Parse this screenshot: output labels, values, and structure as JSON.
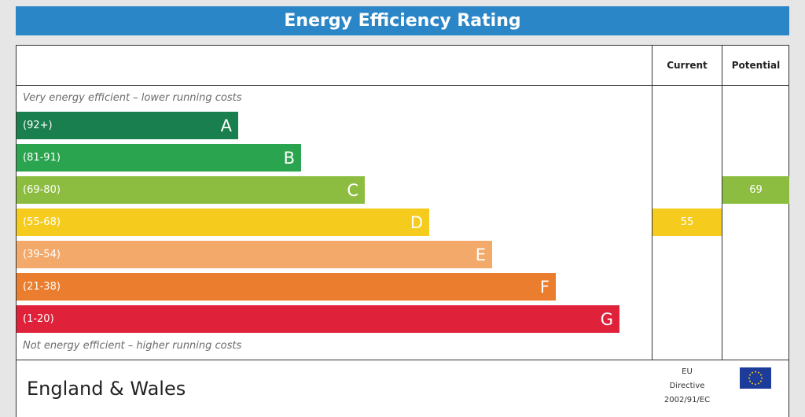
{
  "header": {
    "title": "Energy Efficiency Rating"
  },
  "columns": {
    "current": "Current",
    "potential": "Potential"
  },
  "notes": {
    "top": "Very energy efficient – lower running costs",
    "bottom": "Not energy efficient – higher running costs"
  },
  "bands": [
    {
      "range": "(92+)",
      "letter": "A",
      "color": "#1a7f4e"
    },
    {
      "range": "(81-91)",
      "letter": "B",
      "color": "#2aa44f"
    },
    {
      "range": "(69-80)",
      "letter": "C",
      "color": "#8dbd40"
    },
    {
      "range": "(55-68)",
      "letter": "D",
      "color": "#f5cc1d"
    },
    {
      "range": "(39-54)",
      "letter": "E",
      "color": "#f2a96a"
    },
    {
      "range": "(21-38)",
      "letter": "F",
      "color": "#ea7e2e"
    },
    {
      "range": "(1-20)",
      "letter": "G",
      "color": "#e0213a"
    }
  ],
  "ratings": {
    "current": {
      "value": "55",
      "band": "D",
      "color": "#f5cc1d"
    },
    "potential": {
      "value": "69",
      "band": "C",
      "color": "#8dbd40"
    }
  },
  "footer": {
    "country": "England & Wales",
    "eu_line1": "EU",
    "eu_line2": "Directive",
    "eu_line3": "2002/91/EC"
  }
}
